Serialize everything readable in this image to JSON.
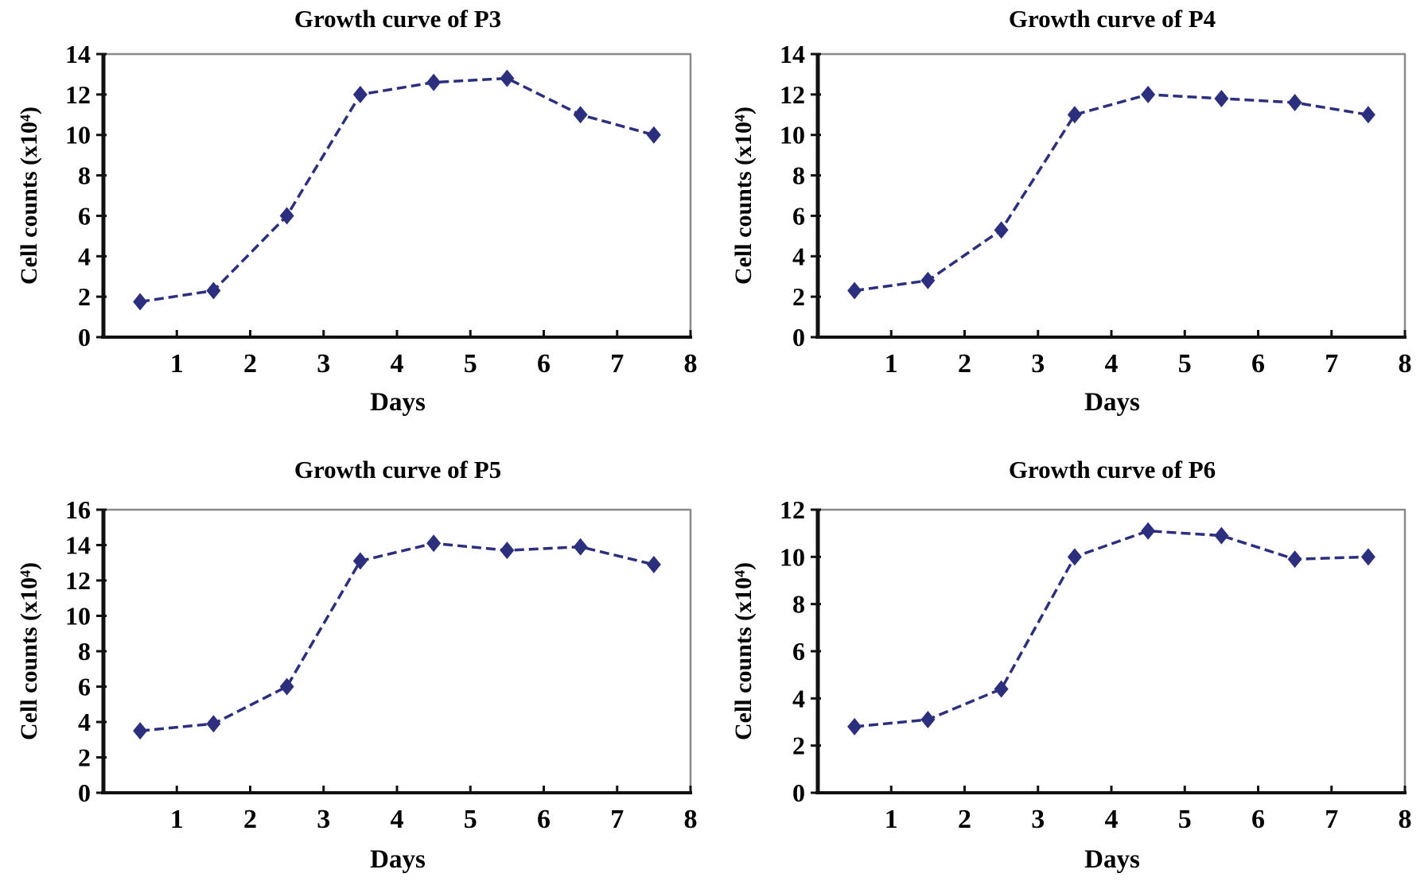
{
  "figure": {
    "background_color": "#ffffff",
    "text_color": "#000000",
    "axis_color": "#111111",
    "border_color": "#8a8a8a"
  },
  "chart_data": [
    {
      "type": "line",
      "title": "Growth curve of P3",
      "xlabel": "Days",
      "ylabel": "Cell counts (x10⁴)",
      "x": [
        0.5,
        1.5,
        2.5,
        3.5,
        4.5,
        5.5,
        6.5,
        7.5
      ],
      "y": [
        1.75,
        2.3,
        6.0,
        12.0,
        12.6,
        12.8,
        11.0,
        10.0
      ],
      "xlim": [
        0,
        8
      ],
      "ylim": [
        0,
        14
      ],
      "xticks": [
        1,
        2,
        3,
        4,
        5,
        6,
        7,
        8
      ],
      "yticks": [
        0,
        2,
        4,
        6,
        8,
        10,
        12,
        14
      ],
      "line_color": "#2b2f7e",
      "line_style": "dashed",
      "marker": "diamond",
      "grid": false,
      "legend": "none"
    },
    {
      "type": "line",
      "title": "Growth curve of P4",
      "xlabel": "Days",
      "ylabel": "Cell counts (x10⁴)",
      "x": [
        0.5,
        1.5,
        2.5,
        3.5,
        4.5,
        5.5,
        6.5,
        7.5
      ],
      "y": [
        2.3,
        2.8,
        5.3,
        11.0,
        12.0,
        11.8,
        11.6,
        11.0
      ],
      "xlim": [
        0,
        8
      ],
      "ylim": [
        0,
        14
      ],
      "xticks": [
        1,
        2,
        3,
        4,
        5,
        6,
        7,
        8
      ],
      "yticks": [
        0,
        2,
        4,
        6,
        8,
        10,
        12,
        14
      ],
      "line_color": "#2b2f7e",
      "line_style": "dashed",
      "marker": "diamond",
      "grid": false,
      "legend": "none"
    },
    {
      "type": "line",
      "title": "Growth curve of P5",
      "xlabel": "Days",
      "ylabel": "Cell counts (x10⁴)",
      "x": [
        0.5,
        1.5,
        2.5,
        3.5,
        4.5,
        5.5,
        6.5,
        7.5
      ],
      "y": [
        3.5,
        3.9,
        6.0,
        13.1,
        14.1,
        13.7,
        13.9,
        12.9
      ],
      "xlim": [
        0,
        8
      ],
      "ylim": [
        0,
        16
      ],
      "xticks": [
        1,
        2,
        3,
        4,
        5,
        6,
        7,
        8
      ],
      "yticks": [
        0,
        2,
        4,
        6,
        8,
        10,
        12,
        14,
        16
      ],
      "line_color": "#2b2f7e",
      "line_style": "dashed",
      "marker": "diamond",
      "grid": false,
      "legend": "none"
    },
    {
      "type": "line",
      "title": "Growth curve of P6",
      "xlabel": "Days",
      "ylabel": "Cell counts (x10⁴)",
      "x": [
        0.5,
        1.5,
        2.5,
        3.5,
        4.5,
        5.5,
        6.5,
        7.5
      ],
      "y": [
        2.8,
        3.1,
        4.4,
        10.0,
        11.1,
        10.9,
        9.9,
        10.0
      ],
      "xlim": [
        0,
        8
      ],
      "ylim": [
        0,
        12
      ],
      "xticks": [
        1,
        2,
        3,
        4,
        5,
        6,
        7,
        8
      ],
      "yticks": [
        0,
        2,
        4,
        6,
        8,
        10,
        12
      ],
      "line_color": "#2b2f7e",
      "line_style": "dashed",
      "marker": "diamond",
      "grid": false,
      "legend": "none"
    }
  ]
}
